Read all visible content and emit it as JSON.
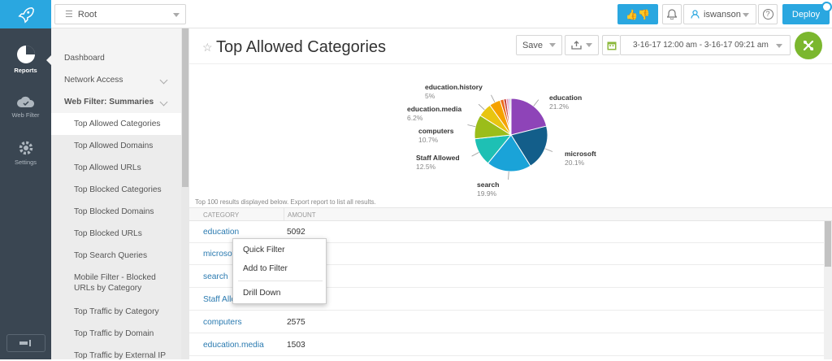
{
  "rail": {
    "items": [
      {
        "label": "Reports",
        "icon": "pie-chart-icon"
      },
      {
        "label": "Web Filter",
        "icon": "cloud-icon"
      },
      {
        "label": "Settings",
        "icon": "gear-icon"
      }
    ]
  },
  "topbar": {
    "root_label": "Root",
    "user_label": "iswanson",
    "deploy_label": "Deploy"
  },
  "sidebar": {
    "items": [
      {
        "label": "Dashboard"
      },
      {
        "label": "Network Access"
      },
      {
        "label": "Web Filter: Summaries"
      },
      {
        "label": "Top Allowed Categories"
      },
      {
        "label": "Top Allowed Domains"
      },
      {
        "label": "Top Allowed URLs"
      },
      {
        "label": "Top Blocked Categories"
      },
      {
        "label": "Top Blocked Domains"
      },
      {
        "label": "Top Blocked URLs"
      },
      {
        "label": "Top Search Queries"
      },
      {
        "label": "Mobile Filter - Blocked URLs by Category"
      },
      {
        "label": "Top Traffic by Category"
      },
      {
        "label": "Top Traffic by Domain"
      },
      {
        "label": "Top Traffic by External IP"
      }
    ]
  },
  "header": {
    "title": "Top Allowed Categories",
    "save_label": "Save",
    "date_range": "3-16-17 12:00 am - 3-16-17 09:21 am"
  },
  "chart_data": {
    "type": "pie",
    "slices": [
      {
        "label": "education",
        "value": 21.2,
        "pct": "21.2%",
        "color": "#8e44b8"
      },
      {
        "label": "microsoft",
        "value": 20.1,
        "pct": "20.1%",
        "color": "#135e8a"
      },
      {
        "label": "search",
        "value": 19.9,
        "pct": "19.9%",
        "color": "#1aa3d8"
      },
      {
        "label": "Staff Allowed",
        "value": 12.5,
        "pct": "12.5%",
        "color": "#1ec0b4"
      },
      {
        "label": "computers",
        "value": 10.7,
        "pct": "10.7%",
        "color": "#9bbd1a"
      },
      {
        "label": "education.media",
        "value": 6.2,
        "pct": "6.2%",
        "color": "#e8c510"
      },
      {
        "label": "education.history",
        "value": 5.0,
        "pct": "5%",
        "color": "#f5a200"
      },
      {
        "label": "",
        "value": 1.6,
        "pct": "",
        "color": "#ec6a1a"
      },
      {
        "label": "",
        "value": 1.2,
        "pct": "",
        "color": "#c8423a"
      },
      {
        "label": "",
        "value": 0.9,
        "pct": "",
        "color": "#e88ab0"
      },
      {
        "label": "",
        "value": 0.7,
        "pct": "",
        "color": "#9b7fc0"
      },
      {
        "label": "",
        "value": 0.5,
        "pct": "",
        "color": "#a0a0a0"
      }
    ]
  },
  "table": {
    "note": "Top 100 results displayed below. Export report to list all results.",
    "columns": [
      "CATEGORY",
      "AMOUNT"
    ],
    "rows": [
      {
        "category": "education",
        "amount": "5092"
      },
      {
        "category": "microsoft",
        "amount": ""
      },
      {
        "category": "search",
        "amount": ""
      },
      {
        "category": "Staff Allowed",
        "amount": ""
      },
      {
        "category": "computers",
        "amount": "2575"
      },
      {
        "category": "education.media",
        "amount": "1503"
      }
    ]
  },
  "context_menu": {
    "items": [
      "Quick Filter",
      "Add to Filter",
      "Drill Down"
    ]
  }
}
